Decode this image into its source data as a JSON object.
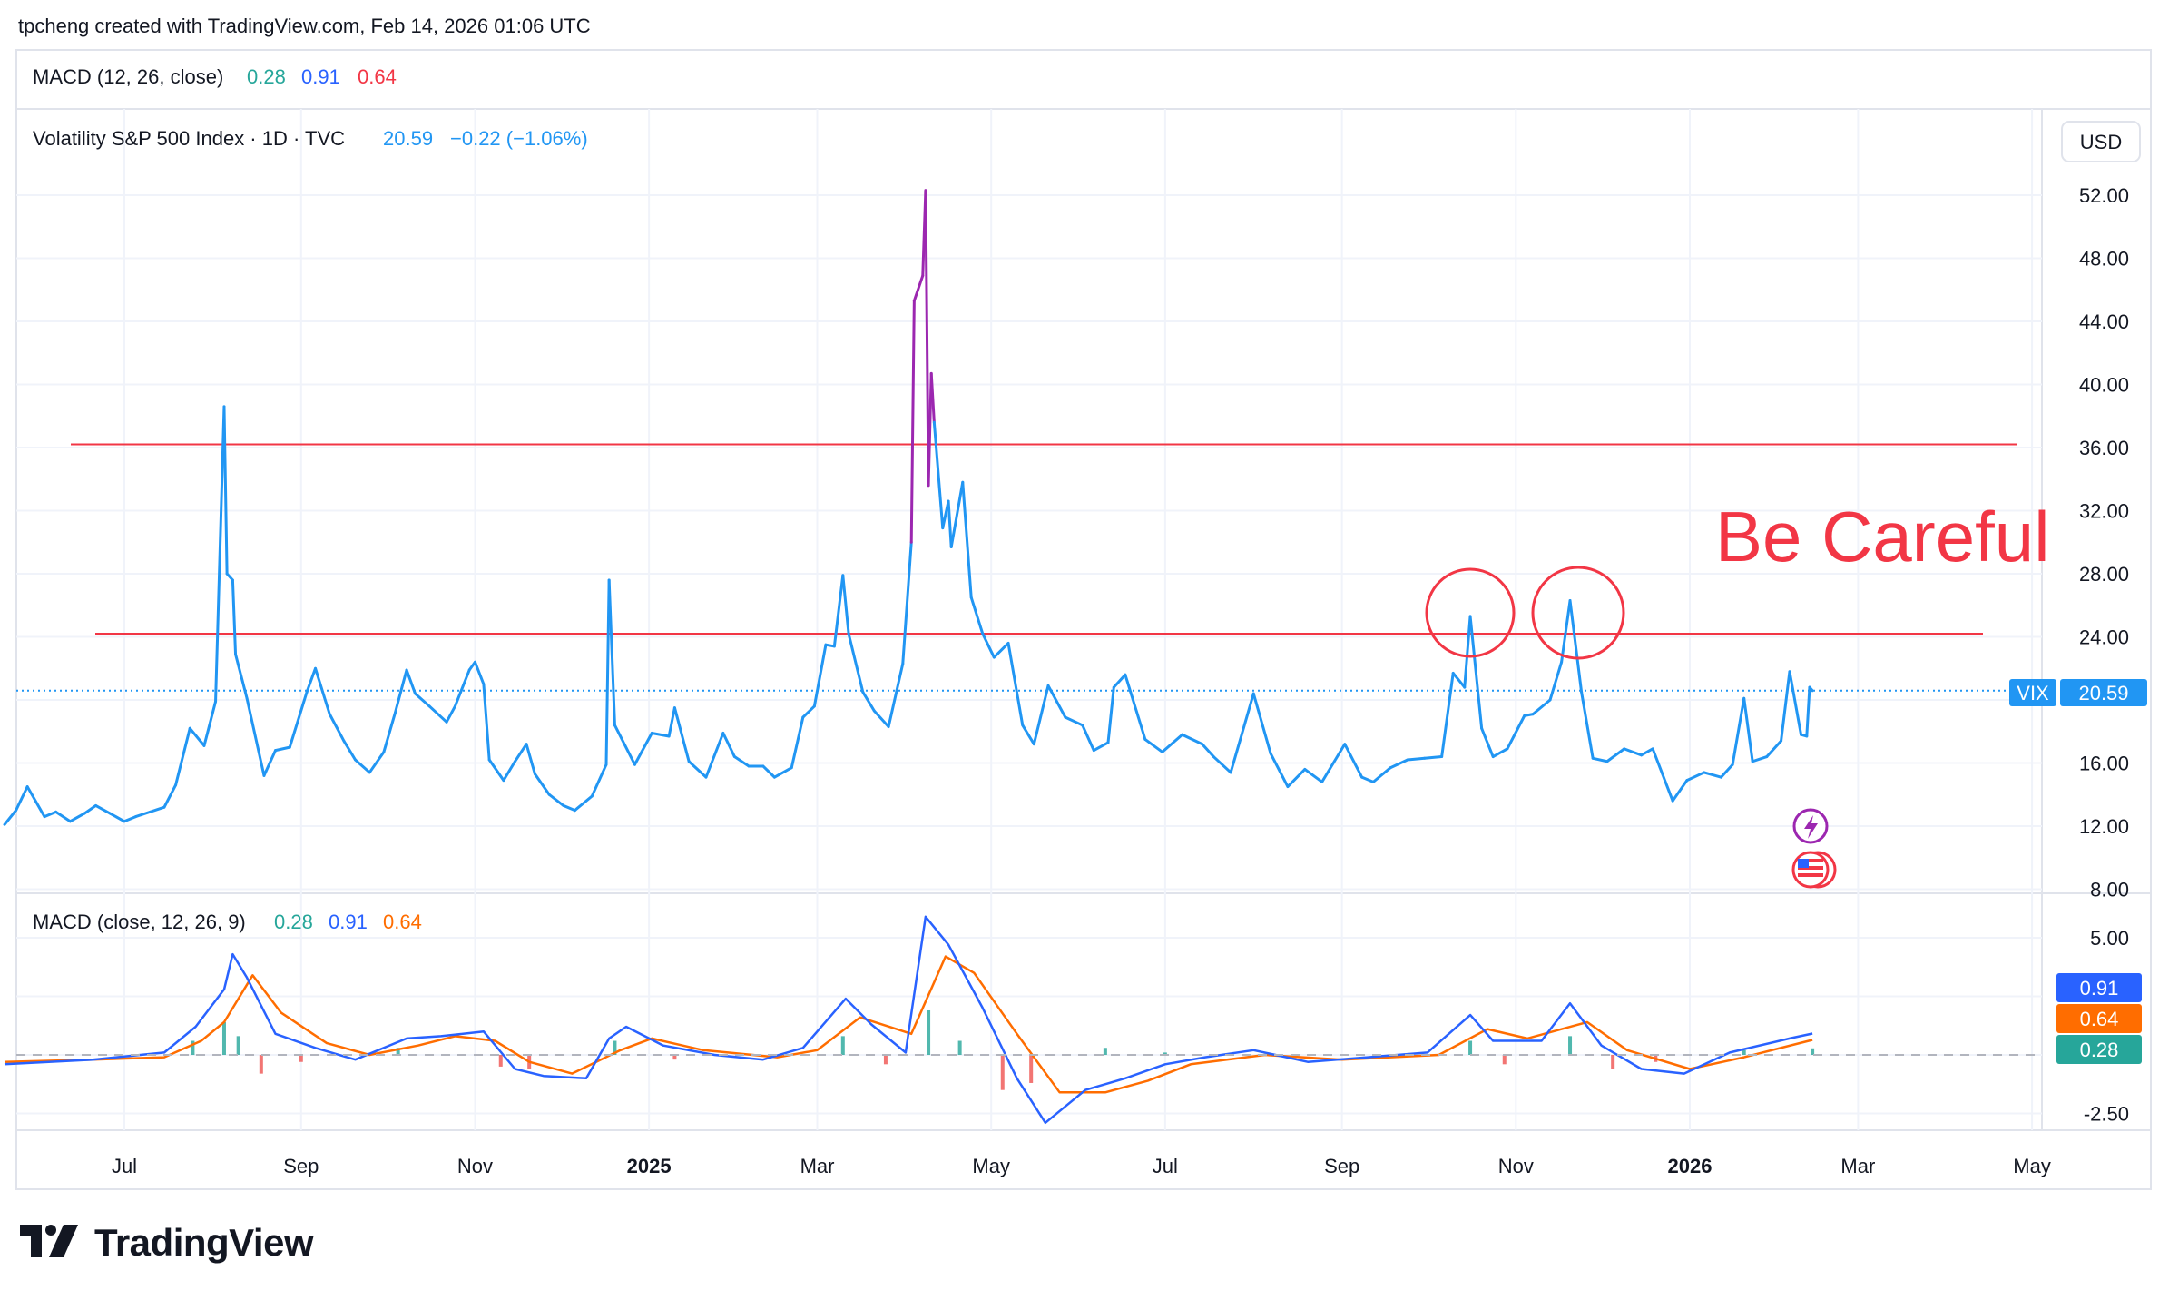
{
  "header": {
    "attribution": "tpcheng created with TradingView.com, Feb 14, 2026 01:06 UTC",
    "macd_legend": {
      "label": "MACD (12, 26, close)",
      "v1": "0.28",
      "v2": "0.91",
      "v3": "0.64"
    }
  },
  "main_pane": {
    "symbol_label": "Volatility S&P 500 Index · 1D · TVC",
    "last_price": "20.59",
    "change": "−0.22 (−1.06%)",
    "currency_button": "USD",
    "price_tag": {
      "symbol": "VIX",
      "value": "20.59"
    },
    "annotation": "Be Careful",
    "y_ticks": [
      "52.00",
      "48.00",
      "44.00",
      "40.00",
      "36.00",
      "32.00",
      "28.00",
      "24.00",
      "20.00",
      "16.00",
      "12.00",
      "8.00"
    ]
  },
  "macd_pane": {
    "legend": {
      "label": "MACD (close, 12, 26, 9)",
      "v1": "0.28",
      "v2": "0.91",
      "v3": "0.64"
    },
    "y_ticks": [
      "5.00",
      "2.50",
      "-2.50"
    ],
    "tags": [
      {
        "value": "0.91",
        "color": "#2962ff"
      },
      {
        "value": "0.64",
        "color": "#ff6d00"
      },
      {
        "value": "0.28",
        "color": "#26a69a"
      }
    ]
  },
  "x_axis": {
    "labels": [
      "Jul",
      "Sep",
      "Nov",
      "2025",
      "Mar",
      "May",
      "Jul",
      "Sep",
      "Nov",
      "2026",
      "Mar",
      "May"
    ]
  },
  "footer": {
    "brand": "TradingView"
  },
  "colors": {
    "vix_line": "#2196f3",
    "spike_line": "#9c27b0",
    "macd_line": "#2962ff",
    "signal_line": "#ff6d00",
    "hist_pos": "#26a69a",
    "hist_neg": "#ef5350",
    "horizontal_lines": "#f23645",
    "annotation": "#f23645",
    "grid": "#f0f3fa"
  },
  "chart_data": {
    "type": "line",
    "title": "Volatility S&P 500 Index · 1D · TVC",
    "ylim": [
      8,
      54
    ],
    "xlim": [
      "2024-05-20",
      "2026-05-10"
    ],
    "horizontal_levels": [
      36.2,
      24.2
    ],
    "series": [
      {
        "name": "VIX",
        "points": [
          [
            "2024-05-20",
            12.1
          ],
          [
            "2024-05-24",
            13.0
          ],
          [
            "2024-05-28",
            14.5
          ],
          [
            "2024-06-03",
            12.6
          ],
          [
            "2024-06-07",
            12.9
          ],
          [
            "2024-06-12",
            12.3
          ],
          [
            "2024-06-17",
            12.8
          ],
          [
            "2024-06-21",
            13.3
          ],
          [
            "2024-06-26",
            12.8
          ],
          [
            "2024-07-01",
            12.3
          ],
          [
            "2024-07-05",
            12.6
          ],
          [
            "2024-07-10",
            12.9
          ],
          [
            "2024-07-15",
            13.2
          ],
          [
            "2024-07-19",
            14.6
          ],
          [
            "2024-07-24",
            18.2
          ],
          [
            "2024-07-29",
            17.1
          ],
          [
            "2024-08-02",
            19.9
          ],
          [
            "2024-08-05",
            38.6
          ],
          [
            "2024-08-06",
            28.0
          ],
          [
            "2024-08-08",
            27.6
          ],
          [
            "2024-08-09",
            22.9
          ],
          [
            "2024-08-13",
            20.1
          ],
          [
            "2024-08-19",
            15.2
          ],
          [
            "2024-08-23",
            16.8
          ],
          [
            "2024-08-28",
            17.0
          ],
          [
            "2024-09-03",
            20.5
          ],
          [
            "2024-09-06",
            22.0
          ],
          [
            "2024-09-11",
            19.1
          ],
          [
            "2024-09-16",
            17.4
          ],
          [
            "2024-09-20",
            16.2
          ],
          [
            "2024-09-25",
            15.4
          ],
          [
            "2024-09-30",
            16.7
          ],
          [
            "2024-10-04",
            19.2
          ],
          [
            "2024-10-08",
            21.9
          ],
          [
            "2024-10-11",
            20.4
          ],
          [
            "2024-10-16",
            19.6
          ],
          [
            "2024-10-22",
            18.6
          ],
          [
            "2024-10-25",
            19.6
          ],
          [
            "2024-10-30",
            21.9
          ],
          [
            "2024-11-01",
            22.4
          ],
          [
            "2024-11-04",
            21.0
          ],
          [
            "2024-11-06",
            16.2
          ],
          [
            "2024-11-11",
            14.9
          ],
          [
            "2024-11-15",
            16.1
          ],
          [
            "2024-11-19",
            17.2
          ],
          [
            "2024-11-22",
            15.3
          ],
          [
            "2024-11-27",
            14.0
          ],
          [
            "2024-12-02",
            13.3
          ],
          [
            "2024-12-06",
            13.0
          ],
          [
            "2024-12-12",
            13.9
          ],
          [
            "2024-12-17",
            15.9
          ],
          [
            "2024-12-18",
            27.6
          ],
          [
            "2024-12-20",
            18.4
          ],
          [
            "2024-12-27",
            15.9
          ],
          [
            "2025-01-02",
            17.9
          ],
          [
            "2025-01-08",
            17.7
          ],
          [
            "2025-01-10",
            19.5
          ],
          [
            "2025-01-15",
            16.1
          ],
          [
            "2025-01-21",
            15.1
          ],
          [
            "2025-01-27",
            17.9
          ],
          [
            "2025-01-31",
            16.4
          ],
          [
            "2025-02-05",
            15.8
          ],
          [
            "2025-02-10",
            15.8
          ],
          [
            "2025-02-14",
            15.1
          ],
          [
            "2025-02-20",
            15.7
          ],
          [
            "2025-02-24",
            18.9
          ],
          [
            "2025-02-28",
            19.6
          ],
          [
            "2025-03-04",
            23.5
          ],
          [
            "2025-03-07",
            23.4
          ],
          [
            "2025-03-10",
            27.9
          ],
          [
            "2025-03-12",
            24.2
          ],
          [
            "2025-03-17",
            20.5
          ],
          [
            "2025-03-21",
            19.3
          ],
          [
            "2025-03-26",
            18.3
          ],
          [
            "2025-03-31",
            22.3
          ],
          [
            "2025-04-03",
            30.0
          ],
          [
            "2025-04-04",
            45.3
          ],
          [
            "2025-04-07",
            46.9
          ],
          [
            "2025-04-08",
            52.3
          ],
          [
            "2025-04-09",
            33.6
          ],
          [
            "2025-04-10",
            40.7
          ],
          [
            "2025-04-11",
            37.6
          ],
          [
            "2025-04-14",
            30.9
          ],
          [
            "2025-04-16",
            32.6
          ],
          [
            "2025-04-17",
            29.7
          ],
          [
            "2025-04-21",
            33.8
          ],
          [
            "2025-04-24",
            26.5
          ],
          [
            "2025-04-28",
            24.2
          ],
          [
            "2025-05-02",
            22.7
          ],
          [
            "2025-05-07",
            23.6
          ],
          [
            "2025-05-12",
            18.4
          ],
          [
            "2025-05-16",
            17.2
          ],
          [
            "2025-05-21",
            20.9
          ],
          [
            "2025-05-27",
            18.9
          ],
          [
            "2025-06-02",
            18.4
          ],
          [
            "2025-06-06",
            16.8
          ],
          [
            "2025-06-11",
            17.3
          ],
          [
            "2025-06-13",
            20.8
          ],
          [
            "2025-06-17",
            21.6
          ],
          [
            "2025-06-24",
            17.5
          ],
          [
            "2025-06-30",
            16.7
          ],
          [
            "2025-07-07",
            17.8
          ],
          [
            "2025-07-14",
            17.2
          ],
          [
            "2025-07-18",
            16.4
          ],
          [
            "2025-07-24",
            15.4
          ],
          [
            "2025-08-01",
            20.4
          ],
          [
            "2025-08-07",
            16.6
          ],
          [
            "2025-08-13",
            14.5
          ],
          [
            "2025-08-19",
            15.6
          ],
          [
            "2025-08-25",
            14.8
          ],
          [
            "2025-09-02",
            17.2
          ],
          [
            "2025-09-08",
            15.1
          ],
          [
            "2025-09-12",
            14.8
          ],
          [
            "2025-09-18",
            15.7
          ],
          [
            "2025-09-24",
            16.2
          ],
          [
            "2025-09-30",
            16.3
          ],
          [
            "2025-10-06",
            16.4
          ],
          [
            "2025-10-10",
            21.7
          ],
          [
            "2025-10-14",
            20.8
          ],
          [
            "2025-10-16",
            25.3
          ],
          [
            "2025-10-20",
            18.2
          ],
          [
            "2025-10-24",
            16.4
          ],
          [
            "2025-10-29",
            16.9
          ],
          [
            "2025-11-04",
            19.0
          ],
          [
            "2025-11-07",
            19.1
          ],
          [
            "2025-11-13",
            20.0
          ],
          [
            "2025-11-17",
            22.4
          ],
          [
            "2025-11-20",
            26.3
          ],
          [
            "2025-11-24",
            20.5
          ],
          [
            "2025-11-28",
            16.3
          ],
          [
            "2025-12-03",
            16.1
          ],
          [
            "2025-12-09",
            16.9
          ],
          [
            "2025-12-15",
            16.5
          ],
          [
            "2025-12-19",
            16.9
          ],
          [
            "2025-12-26",
            13.6
          ],
          [
            "2025-12-31",
            14.9
          ],
          [
            "2026-01-06",
            15.4
          ],
          [
            "2026-01-12",
            15.1
          ],
          [
            "2026-01-16",
            15.9
          ],
          [
            "2026-01-20",
            20.1
          ],
          [
            "2026-01-23",
            16.1
          ],
          [
            "2026-01-28",
            16.4
          ],
          [
            "2026-02-02",
            17.4
          ],
          [
            "2026-02-05",
            21.8
          ],
          [
            "2026-02-09",
            17.8
          ],
          [
            "2026-02-11",
            17.7
          ],
          [
            "2026-02-12",
            20.8
          ],
          [
            "2026-02-13",
            20.59
          ]
        ]
      }
    ]
  },
  "macd_data": {
    "type": "line",
    "ylim": [
      -3.4,
      6.4
    ],
    "series": [
      {
        "name": "MACD",
        "points": [
          [
            "2024-05-20",
            -0.4
          ],
          [
            "2024-06-20",
            -0.2
          ],
          [
            "2024-07-15",
            0.1
          ],
          [
            "2024-07-26",
            1.2
          ],
          [
            "2024-08-05",
            2.8
          ],
          [
            "2024-08-08",
            4.3
          ],
          [
            "2024-08-13",
            3.3
          ],
          [
            "2024-08-23",
            0.9
          ],
          [
            "2024-09-06",
            0.3
          ],
          [
            "2024-09-20",
            -0.2
          ],
          [
            "2024-10-08",
            0.7
          ],
          [
            "2024-10-20",
            0.8
          ],
          [
            "2024-11-04",
            1.0
          ],
          [
            "2024-11-15",
            -0.6
          ],
          [
            "2024-11-25",
            -0.9
          ],
          [
            "2024-12-10",
            -1.0
          ],
          [
            "2024-12-18",
            0.7
          ],
          [
            "2024-12-24",
            1.2
          ],
          [
            "2025-01-06",
            0.4
          ],
          [
            "2025-01-24",
            0.0
          ],
          [
            "2025-02-10",
            -0.2
          ],
          [
            "2025-02-24",
            0.3
          ],
          [
            "2025-03-11",
            2.4
          ],
          [
            "2025-03-20",
            1.3
          ],
          [
            "2025-04-01",
            0.1
          ],
          [
            "2025-04-08",
            5.9
          ],
          [
            "2025-04-16",
            4.7
          ],
          [
            "2025-04-28",
            2.0
          ],
          [
            "2025-05-10",
            -1.0
          ],
          [
            "2025-05-20",
            -2.9
          ],
          [
            "2025-06-03",
            -1.5
          ],
          [
            "2025-06-17",
            -1.0
          ],
          [
            "2025-07-01",
            -0.4
          ],
          [
            "2025-07-15",
            -0.1
          ],
          [
            "2025-08-01",
            0.2
          ],
          [
            "2025-08-20",
            -0.3
          ],
          [
            "2025-09-10",
            -0.1
          ],
          [
            "2025-10-01",
            0.1
          ],
          [
            "2025-10-16",
            1.7
          ],
          [
            "2025-10-24",
            0.6
          ],
          [
            "2025-11-10",
            0.6
          ],
          [
            "2025-11-20",
            2.2
          ],
          [
            "2025-12-01",
            0.4
          ],
          [
            "2025-12-15",
            -0.6
          ],
          [
            "2025-12-30",
            -0.8
          ],
          [
            "2026-01-15",
            0.1
          ],
          [
            "2026-02-05",
            0.7
          ],
          [
            "2026-02-13",
            0.91
          ]
        ]
      },
      {
        "name": "Signal",
        "points": [
          [
            "2024-05-20",
            -0.3
          ],
          [
            "2024-06-20",
            -0.2
          ],
          [
            "2024-07-15",
            -0.1
          ],
          [
            "2024-07-28",
            0.6
          ],
          [
            "2024-08-05",
            1.4
          ],
          [
            "2024-08-15",
            3.4
          ],
          [
            "2024-08-25",
            1.8
          ],
          [
            "2024-09-10",
            0.5
          ],
          [
            "2024-09-25",
            0.0
          ],
          [
            "2024-10-12",
            0.4
          ],
          [
            "2024-10-25",
            0.8
          ],
          [
            "2024-11-08",
            0.6
          ],
          [
            "2024-11-20",
            -0.3
          ],
          [
            "2024-12-05",
            -0.8
          ],
          [
            "2024-12-22",
            0.2
          ],
          [
            "2025-01-02",
            0.7
          ],
          [
            "2025-01-20",
            0.2
          ],
          [
            "2025-02-15",
            -0.1
          ],
          [
            "2025-03-01",
            0.2
          ],
          [
            "2025-03-16",
            1.6
          ],
          [
            "2025-04-03",
            0.9
          ],
          [
            "2025-04-15",
            4.2
          ],
          [
            "2025-04-25",
            3.5
          ],
          [
            "2025-05-10",
            0.9
          ],
          [
            "2025-05-25",
            -1.6
          ],
          [
            "2025-06-10",
            -1.6
          ],
          [
            "2025-06-25",
            -1.1
          ],
          [
            "2025-07-10",
            -0.4
          ],
          [
            "2025-08-05",
            0.0
          ],
          [
            "2025-09-01",
            -0.2
          ],
          [
            "2025-10-05",
            0.0
          ],
          [
            "2025-10-22",
            1.1
          ],
          [
            "2025-11-05",
            0.7
          ],
          [
            "2025-11-26",
            1.4
          ],
          [
            "2025-12-10",
            0.2
          ],
          [
            "2026-01-01",
            -0.6
          ],
          [
            "2026-01-20",
            -0.1
          ],
          [
            "2026-02-13",
            0.64
          ]
        ]
      },
      {
        "name": "Histogram",
        "points": [
          [
            "2024-07-25",
            0.6
          ],
          [
            "2024-08-05",
            1.4
          ],
          [
            "2024-08-10",
            0.8
          ],
          [
            "2024-08-18",
            -0.8
          ],
          [
            "2024-09-01",
            -0.3
          ],
          [
            "2024-10-05",
            0.3
          ],
          [
            "2024-11-10",
            -0.5
          ],
          [
            "2024-11-20",
            -0.6
          ],
          [
            "2024-12-20",
            0.6
          ],
          [
            "2025-01-10",
            -0.2
          ],
          [
            "2025-03-10",
            0.8
          ],
          [
            "2025-03-25",
            -0.4
          ],
          [
            "2025-04-09",
            1.9
          ],
          [
            "2025-04-20",
            0.6
          ],
          [
            "2025-05-05",
            -1.5
          ],
          [
            "2025-05-15",
            -1.2
          ],
          [
            "2025-06-10",
            0.3
          ],
          [
            "2025-07-01",
            0.1
          ],
          [
            "2025-10-16",
            0.6
          ],
          [
            "2025-10-28",
            -0.4
          ],
          [
            "2025-11-20",
            0.8
          ],
          [
            "2025-12-05",
            -0.6
          ],
          [
            "2025-12-20",
            -0.3
          ],
          [
            "2026-01-20",
            0.2
          ],
          [
            "2026-02-13",
            0.28
          ]
        ]
      }
    ]
  }
}
